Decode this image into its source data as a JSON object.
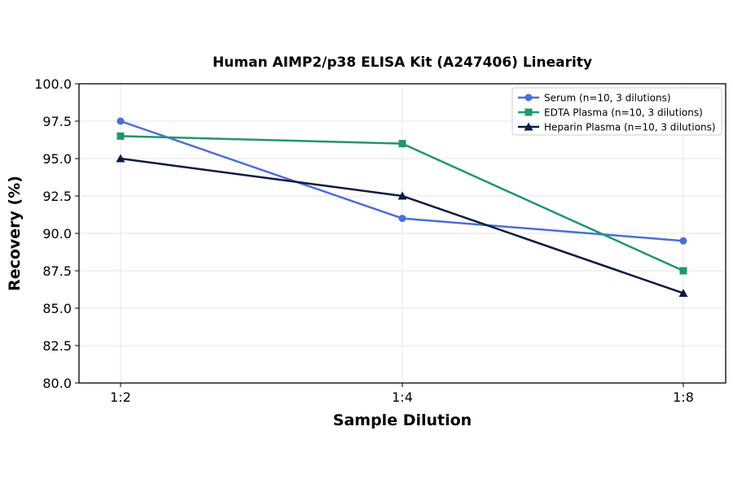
{
  "chart_data": {
    "type": "line",
    "title": "Human AIMP2/p38 ELISA Kit (A247406) Linearity",
    "xlabel": "Sample Dilution",
    "ylabel": "Recovery (%)",
    "categories": [
      "1:2",
      "1:4",
      "1:8"
    ],
    "ylim": [
      80,
      100
    ],
    "yticks": [
      "80.0",
      "82.5",
      "85.0",
      "87.5",
      "90.0",
      "92.5",
      "95.0",
      "97.5",
      "100.0"
    ],
    "grid": true,
    "legend_position": "top-right",
    "series": [
      {
        "name": "Serum (n=10, 3 dilutions)",
        "values": [
          97.5,
          91.0,
          89.5
        ],
        "color": "#4a6fd4",
        "marker": "circle"
      },
      {
        "name": "EDTA Plasma (n=10, 3 dilutions)",
        "values": [
          96.5,
          96.0,
          87.5
        ],
        "color": "#21966b",
        "marker": "square"
      },
      {
        "name": "Heparin Plasma (n=10, 3 dilutions)",
        "values": [
          95.0,
          92.5,
          86.0
        ],
        "color": "#0d1a45",
        "marker": "triangle"
      }
    ]
  }
}
